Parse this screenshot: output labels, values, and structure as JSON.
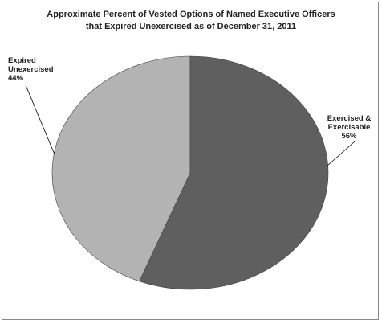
{
  "chart_data": {
    "type": "pie",
    "title": [
      "Approximate Percent of Vested Options of Named Executive Officers",
      "that Expired Unexercised as of December 31, 2011"
    ],
    "categories": [
      "Exercised & Exercisable",
      "Expired Unexercised"
    ],
    "values": [
      56,
      44
    ],
    "value_labels": [
      "56%",
      "44%"
    ],
    "colors": [
      "#5f5f5f",
      "#b3b3b3"
    ]
  }
}
